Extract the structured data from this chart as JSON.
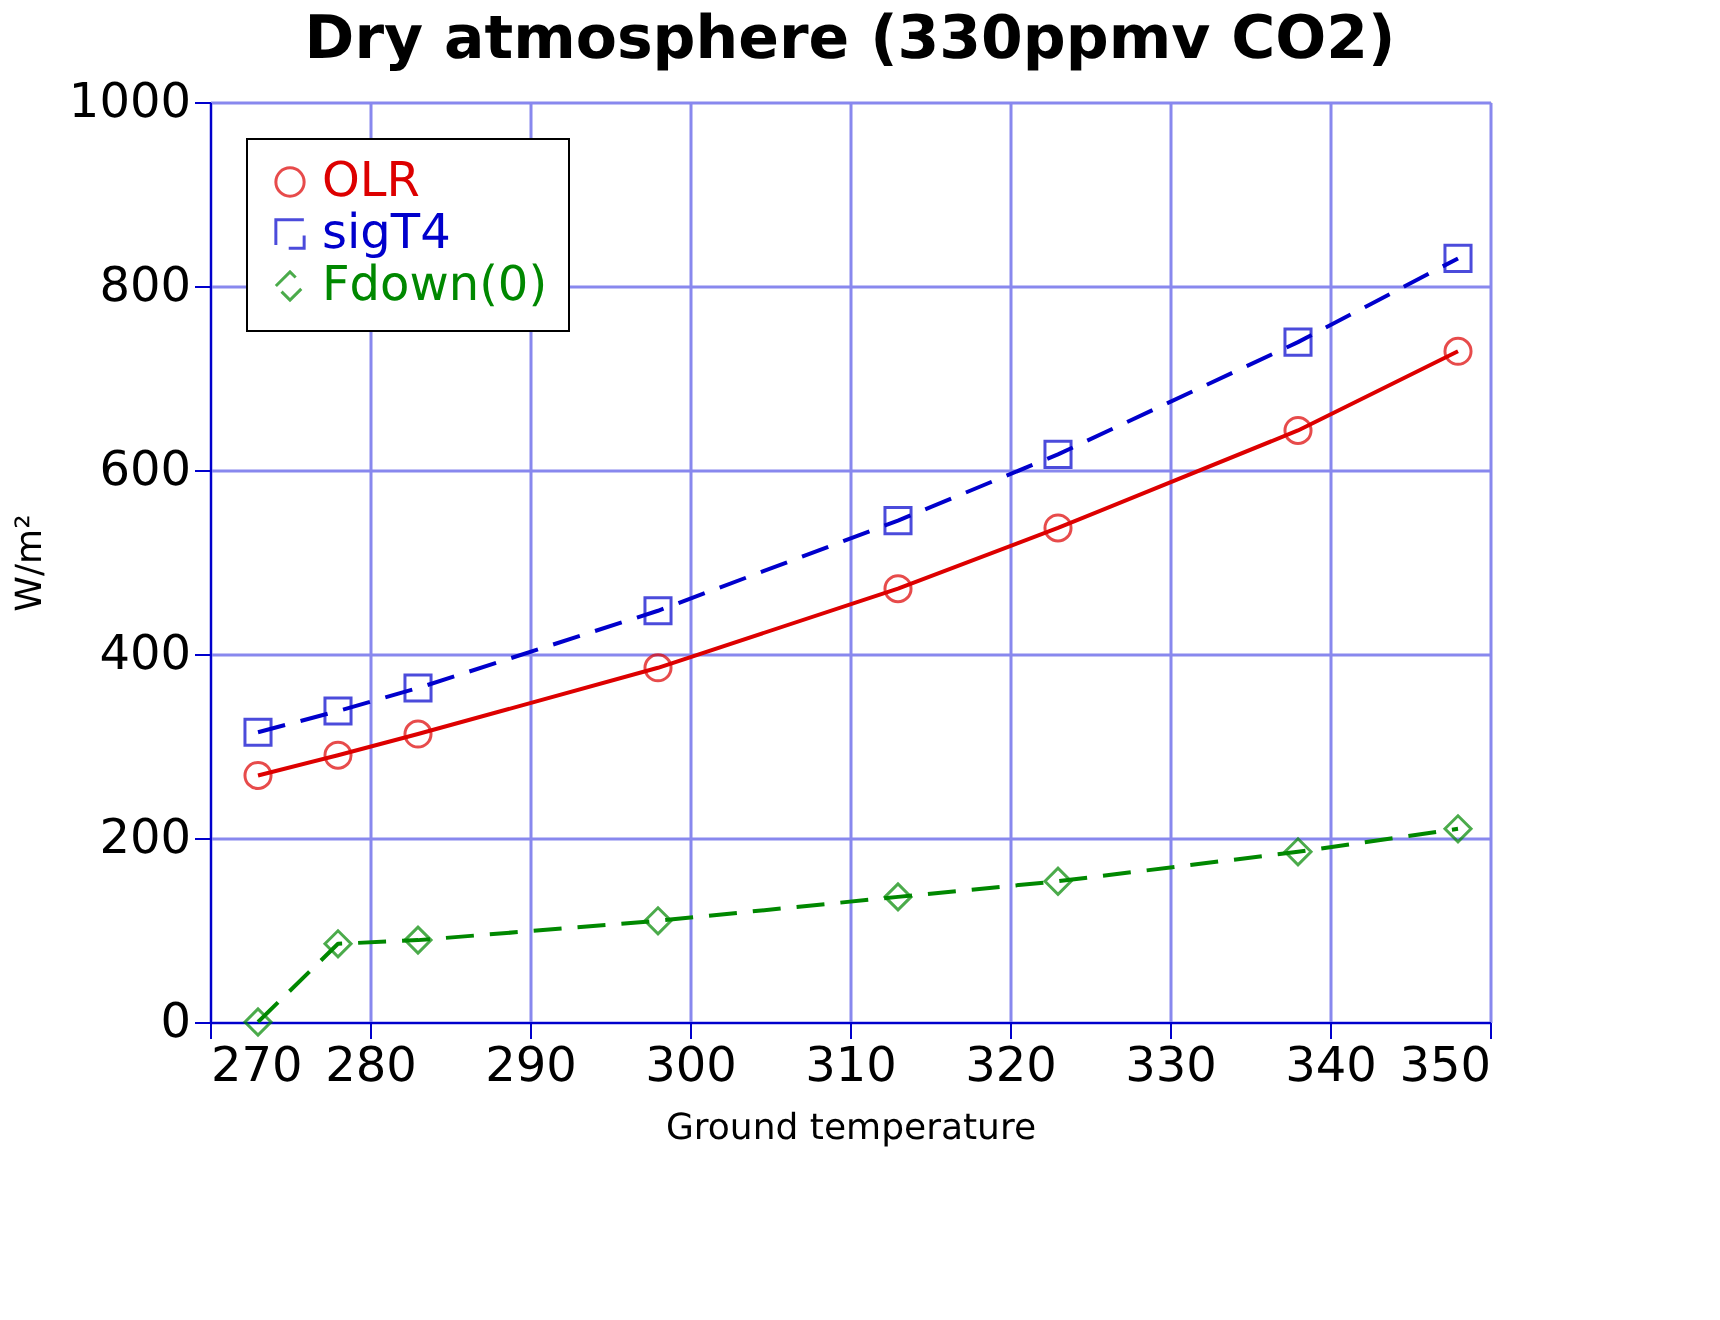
{
  "chart_data": {
    "type": "line",
    "title": "Dry atmosphere (330ppmv CO2)",
    "xlabel": "Ground temperature",
    "ylabel": "W/m²",
    "x": [
      273,
      278,
      283,
      298,
      313,
      323,
      338,
      348
    ],
    "series": [
      {
        "name": "OLR",
        "color": "#dd0000",
        "values": [
          268,
          290,
          313,
          385,
          471,
          537,
          643,
          729
        ],
        "marker": "circle",
        "line_style": "solid"
      },
      {
        "name": "sigT4",
        "color": "#0000cc",
        "values": [
          315,
          338,
          363,
          447,
          545,
          617,
          739,
          830
        ],
        "marker": "square",
        "line_style": "dashed"
      },
      {
        "name": "Fdown(0)",
        "color": "#008800",
        "values": [
          0,
          85,
          89,
          110,
          136,
          153,
          185,
          210
        ],
        "marker": "diamond",
        "line_style": "dashed"
      }
    ],
    "xlim": [
      270,
      350
    ],
    "xticks": [
      270,
      280,
      290,
      300,
      310,
      320,
      330,
      340,
      350
    ],
    "ylim": [
      0,
      1000
    ],
    "yticks": [
      0,
      200,
      400,
      600,
      800,
      1000
    ],
    "grid": true,
    "legend": "top left"
  }
}
